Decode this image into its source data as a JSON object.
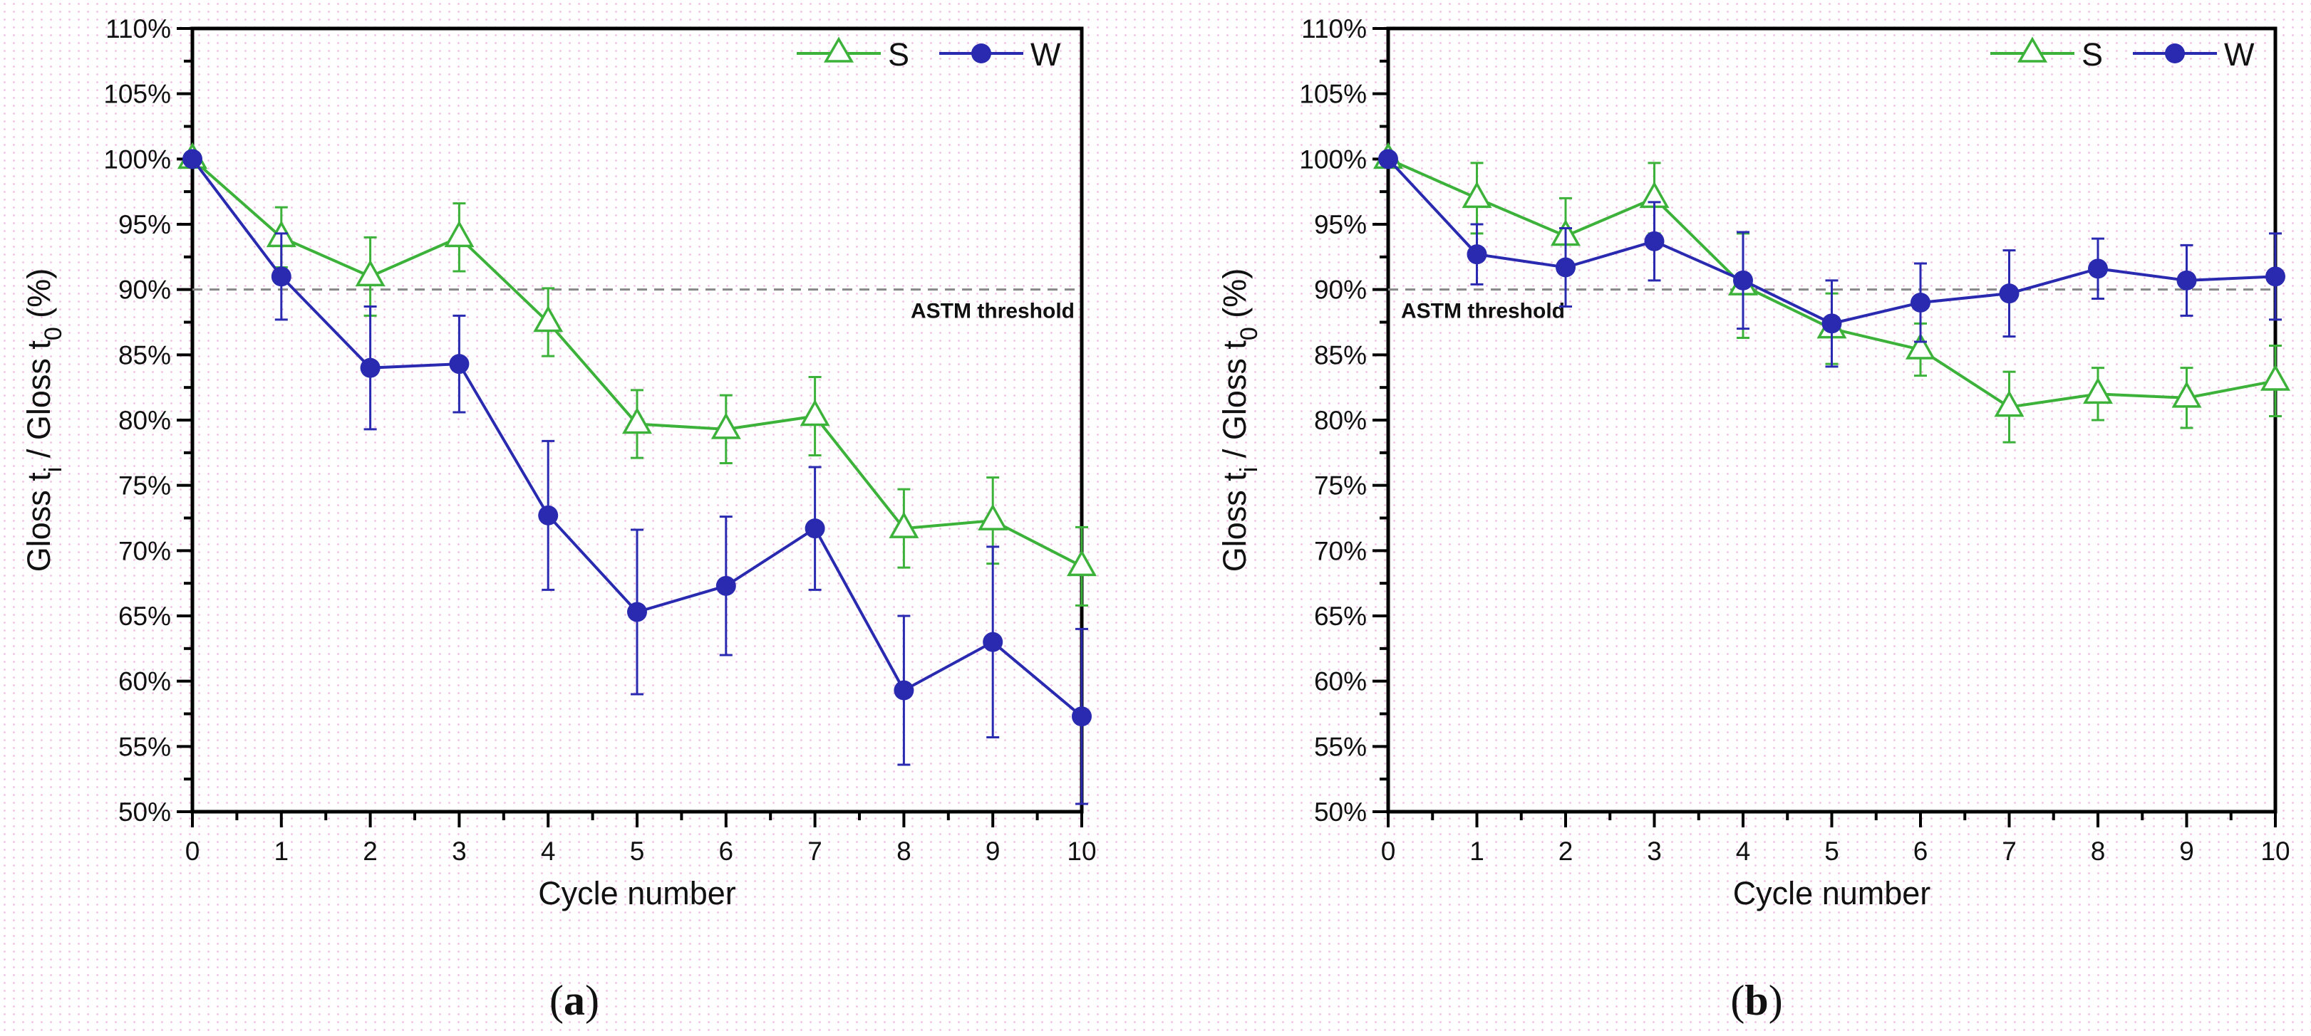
{
  "colors": {
    "S": "#3cb23a",
    "W": "#2a2ab0",
    "threshold": "#888888"
  },
  "chart_data": [
    {
      "type": "line",
      "panel_label": "(a)",
      "caption_letter": "a",
      "xlabel": "Cycle number",
      "ylabel_parts": [
        "Gloss t",
        "i",
        " / Gloss t",
        "0",
        " (%)"
      ],
      "x": [
        0,
        1,
        2,
        3,
        4,
        5,
        6,
        7,
        8,
        9,
        10
      ],
      "xlim": [
        0,
        10
      ],
      "ylim": [
        50,
        110
      ],
      "yticks": [
        "50%",
        "55%",
        "60%",
        "65%",
        "70%",
        "75%",
        "80%",
        "85%",
        "90%",
        "95%",
        "100%",
        "105%",
        "110%"
      ],
      "xticks": [
        "0",
        "1",
        "2",
        "3",
        "4",
        "5",
        "6",
        "7",
        "8",
        "9",
        "10"
      ],
      "threshold": {
        "value": 90,
        "label": "ASTM threshold",
        "position": "right"
      },
      "legend": {
        "placement": "top-right",
        "entries": [
          "S",
          "W"
        ]
      },
      "series": [
        {
          "name": "S",
          "marker": "open-triangle",
          "values": [
            100,
            94,
            91,
            94,
            87.5,
            79.7,
            79.3,
            80.3,
            71.7,
            72.3,
            68.8
          ],
          "errors": [
            0,
            2.3,
            3,
            2.6,
            2.6,
            2.6,
            2.6,
            3,
            3,
            3.3,
            3
          ]
        },
        {
          "name": "W",
          "marker": "filled-circle",
          "values": [
            100,
            91,
            84,
            84.3,
            72.7,
            65.3,
            67.3,
            71.7,
            59.3,
            63,
            57.3
          ],
          "errors": [
            0,
            3.3,
            4.7,
            3.7,
            5.7,
            6.3,
            5.3,
            4.7,
            5.7,
            7.3,
            6.7
          ]
        }
      ]
    },
    {
      "type": "line",
      "panel_label": "(b)",
      "caption_letter": "b",
      "xlabel": "Cycle number",
      "ylabel_parts": [
        "Gloss t",
        "i",
        " / Gloss t",
        "0",
        " (%)"
      ],
      "x": [
        0,
        1,
        2,
        3,
        4,
        5,
        6,
        7,
        8,
        9,
        10
      ],
      "xlim": [
        0,
        10
      ],
      "ylim": [
        50,
        110
      ],
      "yticks": [
        "50%",
        "55%",
        "60%",
        "65%",
        "70%",
        "75%",
        "80%",
        "85%",
        "90%",
        "95%",
        "100%",
        "105%",
        "110%"
      ],
      "xticks": [
        "0",
        "1",
        "2",
        "3",
        "4",
        "5",
        "6",
        "7",
        "8",
        "9",
        "10"
      ],
      "threshold": {
        "value": 90,
        "label": "ASTM threshold",
        "position": "left"
      },
      "legend": {
        "placement": "top-right",
        "entries": [
          "S",
          "W"
        ]
      },
      "series": [
        {
          "name": "S",
          "marker": "open-triangle",
          "values": [
            100,
            97,
            94.1,
            97,
            90.3,
            87,
            85.4,
            81,
            82,
            81.7,
            83
          ],
          "errors": [
            0,
            2.7,
            2.9,
            2.7,
            4,
            2.7,
            2,
            2.7,
            2,
            2.3,
            2.7
          ]
        },
        {
          "name": "W",
          "marker": "filled-circle",
          "values": [
            100,
            92.7,
            91.7,
            93.7,
            90.7,
            87.4,
            89,
            89.7,
            91.6,
            90.7,
            91
          ],
          "errors": [
            0,
            2.3,
            3,
            3,
            3.7,
            3.3,
            3,
            3.3,
            2.3,
            2.7,
            3.3
          ]
        }
      ]
    }
  ]
}
